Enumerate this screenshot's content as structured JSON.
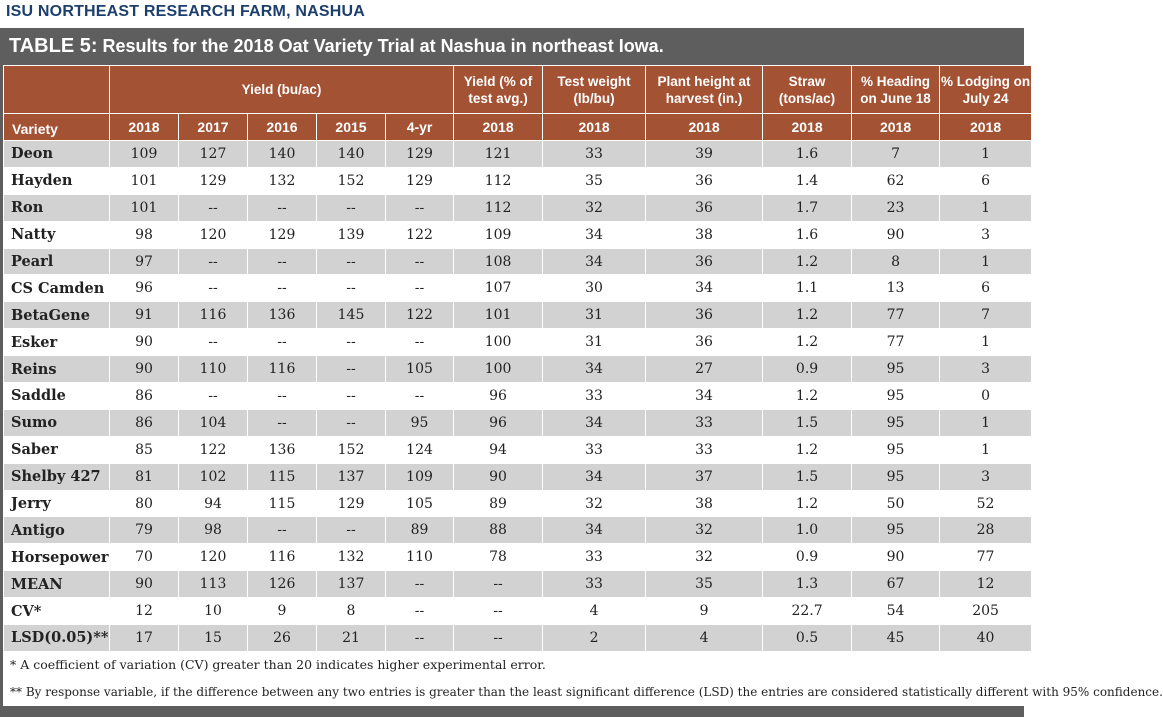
{
  "header": "ISU NORTHEAST RESEARCH FARM, NASHUA",
  "table_title_prefix": "TABLE 5:",
  "table_title_rest": " Results for the 2018 Oat Variety Trial at Nashua in northeast Iowa.",
  "colors": {
    "header_bg": "#a35234",
    "frame": "#5e5e5e",
    "stripe": "#d2d2d2"
  },
  "head": {
    "yield_group": "Yield (bu/ac)",
    "variety": "Variety",
    "yield_pct": "Yield (% of test avg.)",
    "test_weight": "Test weight (lb/bu)",
    "plant_height": "Plant height at harvest (in.)",
    "straw": "Straw (tons/ac)",
    "heading": "% Heading on June 18",
    "lodging": "% Lodging on July 24",
    "years": [
      "2018",
      "2017",
      "2016",
      "2015",
      "4-yr",
      "2018",
      "2018",
      "2018",
      "2018",
      "2018",
      "2018"
    ]
  },
  "rows": [
    [
      "Deon",
      "109",
      "127",
      "140",
      "140",
      "129",
      "121",
      "33",
      "39",
      "1.6",
      "7",
      "1"
    ],
    [
      "Hayden",
      "101",
      "129",
      "132",
      "152",
      "129",
      "112",
      "35",
      "36",
      "1.4",
      "62",
      "6"
    ],
    [
      "Ron",
      "101",
      "--",
      "--",
      "--",
      "--",
      "112",
      "32",
      "36",
      "1.7",
      "23",
      "1"
    ],
    [
      "Natty",
      "98",
      "120",
      "129",
      "139",
      "122",
      "109",
      "34",
      "38",
      "1.6",
      "90",
      "3"
    ],
    [
      "Pearl",
      "97",
      "--",
      "--",
      "--",
      "--",
      "108",
      "34",
      "36",
      "1.2",
      "8",
      "1"
    ],
    [
      "CS Camden",
      "96",
      "--",
      "--",
      "--",
      "--",
      "107",
      "30",
      "34",
      "1.1",
      "13",
      "6"
    ],
    [
      "BetaGene",
      "91",
      "116",
      "136",
      "145",
      "122",
      "101",
      "31",
      "36",
      "1.2",
      "77",
      "7"
    ],
    [
      "Esker",
      "90",
      "--",
      "--",
      "--",
      "--",
      "100",
      "31",
      "36",
      "1.2",
      "77",
      "1"
    ],
    [
      "Reins",
      "90",
      "110",
      "116",
      "--",
      "105",
      "100",
      "34",
      "27",
      "0.9",
      "95",
      "3"
    ],
    [
      "Saddle",
      "86",
      "--",
      "--",
      "--",
      "--",
      "96",
      "33",
      "34",
      "1.2",
      "95",
      "0"
    ],
    [
      "Sumo",
      "86",
      "104",
      "--",
      "--",
      "95",
      "96",
      "34",
      "33",
      "1.5",
      "95",
      "1"
    ],
    [
      "Saber",
      "85",
      "122",
      "136",
      "152",
      "124",
      "94",
      "33",
      "33",
      "1.2",
      "95",
      "1"
    ],
    [
      "Shelby 427",
      "81",
      "102",
      "115",
      "137",
      "109",
      "90",
      "34",
      "37",
      "1.5",
      "95",
      "3"
    ],
    [
      "Jerry",
      "80",
      "94",
      "115",
      "129",
      "105",
      "89",
      "32",
      "38",
      "1.2",
      "50",
      "52"
    ],
    [
      "Antigo",
      "79",
      "98",
      "--",
      "--",
      "89",
      "88",
      "34",
      "32",
      "1.0",
      "95",
      "28"
    ],
    [
      "Horsepower",
      "70",
      "120",
      "116",
      "132",
      "110",
      "78",
      "33",
      "32",
      "0.9",
      "90",
      "77"
    ],
    [
      "MEAN",
      "90",
      "113",
      "126",
      "137",
      "--",
      "--",
      "33",
      "35",
      "1.3",
      "67",
      "12"
    ],
    [
      "CV*",
      "12",
      "10",
      "9",
      "8",
      "--",
      "--",
      "4",
      "9",
      "22.7",
      "54",
      "205"
    ],
    [
      "LSD(0.05)**",
      "17",
      "15",
      "26",
      "21",
      "--",
      "--",
      "2",
      "4",
      "0.5",
      "45",
      "40"
    ]
  ],
  "footnotes": [
    "* A coefficient of variation (CV) greater than 20 indicates higher experimental error.",
    "** By response variable, if the difference between any two entries is greater than the least significant difference (LSD) the entries are considered statistically different with 95% confidence."
  ]
}
